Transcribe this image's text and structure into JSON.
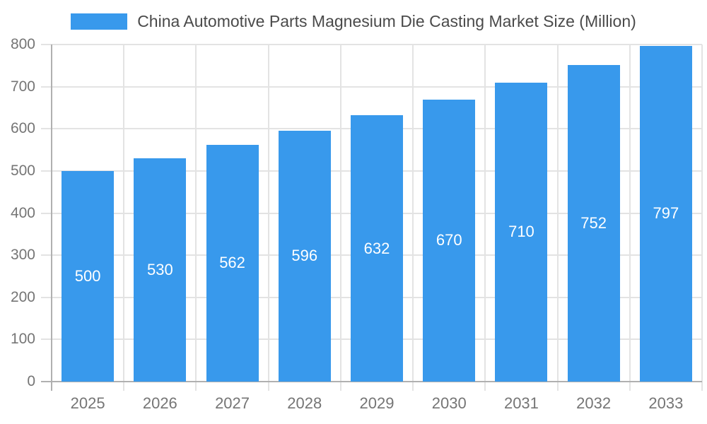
{
  "chart_data": {
    "type": "bar",
    "title": "China Automotive Parts Magnesium Die Casting Market Size (Million)",
    "categories": [
      "2025",
      "2026",
      "2027",
      "2028",
      "2029",
      "2030",
      "2031",
      "2032",
      "2033"
    ],
    "values": [
      500,
      530,
      562,
      596,
      632,
      670,
      710,
      752,
      797
    ],
    "value_labels": [
      "500",
      "530",
      "562",
      "596",
      "632",
      "670",
      "710",
      "752",
      "797"
    ],
    "xlabel": "",
    "ylabel": "",
    "ylim": [
      0,
      800
    ],
    "yticks": [
      "0",
      "100",
      "200",
      "300",
      "400",
      "500",
      "600",
      "700",
      "800"
    ],
    "ytick_values": [
      0,
      100,
      200,
      300,
      400,
      500,
      600,
      700,
      800
    ],
    "grid": true,
    "legend_position": "top"
  },
  "legend": {
    "label": "China Automotive Parts Magnesium Die Casting Market Size (Million)"
  },
  "colors": {
    "bar": "#3899ec",
    "bar_label": "#ffffff",
    "grid_line": "#e3e3e3",
    "axis_line": "#b0b0b0",
    "axis_label": "#757575",
    "legend_text": "#4a4a4a",
    "background": "#ffffff"
  }
}
